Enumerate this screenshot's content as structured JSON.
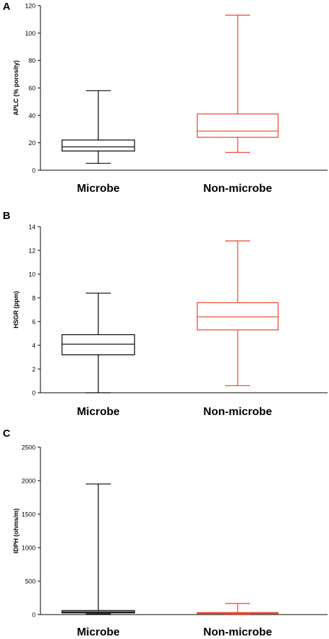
{
  "chart_data": [
    {
      "panel": "A",
      "type": "box",
      "ylabel": "APLC (% porosity)",
      "ylim": [
        0,
        120
      ],
      "yticks": [
        0,
        20,
        40,
        60,
        80,
        100,
        120
      ],
      "categories": [
        "Microbe",
        "Non-microbe"
      ],
      "boxes": [
        {
          "category": "Microbe",
          "color": "#000000",
          "min": 5,
          "q1": 14,
          "median": 17,
          "q3": 22,
          "max": 58
        },
        {
          "category": "Non-microbe",
          "color": "#e8402a",
          "min": 13,
          "q1": 24,
          "median": 28.5,
          "q3": 41,
          "max": 113
        }
      ]
    },
    {
      "panel": "B",
      "type": "box",
      "ylabel": "HSGR (ppm)",
      "ylim": [
        0,
        14
      ],
      "yticks": [
        0,
        2,
        4,
        6,
        8,
        10,
        12,
        14
      ],
      "categories": [
        "Microbe",
        "Non-microbe"
      ],
      "boxes": [
        {
          "category": "Microbe",
          "color": "#000000",
          "min": 0,
          "q1": 3.2,
          "median": 4.1,
          "q3": 4.9,
          "max": 8.4
        },
        {
          "category": "Non-microbe",
          "color": "#e8402a",
          "min": 0.6,
          "q1": 5.3,
          "median": 6.4,
          "q3": 7.6,
          "max": 12.8
        }
      ]
    },
    {
      "panel": "C",
      "type": "box",
      "ylabel": "IDPH (ohms/m)",
      "ylim": [
        0,
        2500
      ],
      "yticks": [
        0,
        500,
        1000,
        1500,
        2000,
        2500
      ],
      "categories": [
        "Microbe",
        "Non-microbe"
      ],
      "boxes": [
        {
          "category": "Microbe",
          "color": "#000000",
          "min": 10,
          "q1": 25,
          "median": 40,
          "q3": 60,
          "max": 1950
        },
        {
          "category": "Non-microbe",
          "color": "#e8402a",
          "min": 5,
          "q1": 15,
          "median": 22,
          "q3": 30,
          "max": 165
        }
      ]
    }
  ]
}
